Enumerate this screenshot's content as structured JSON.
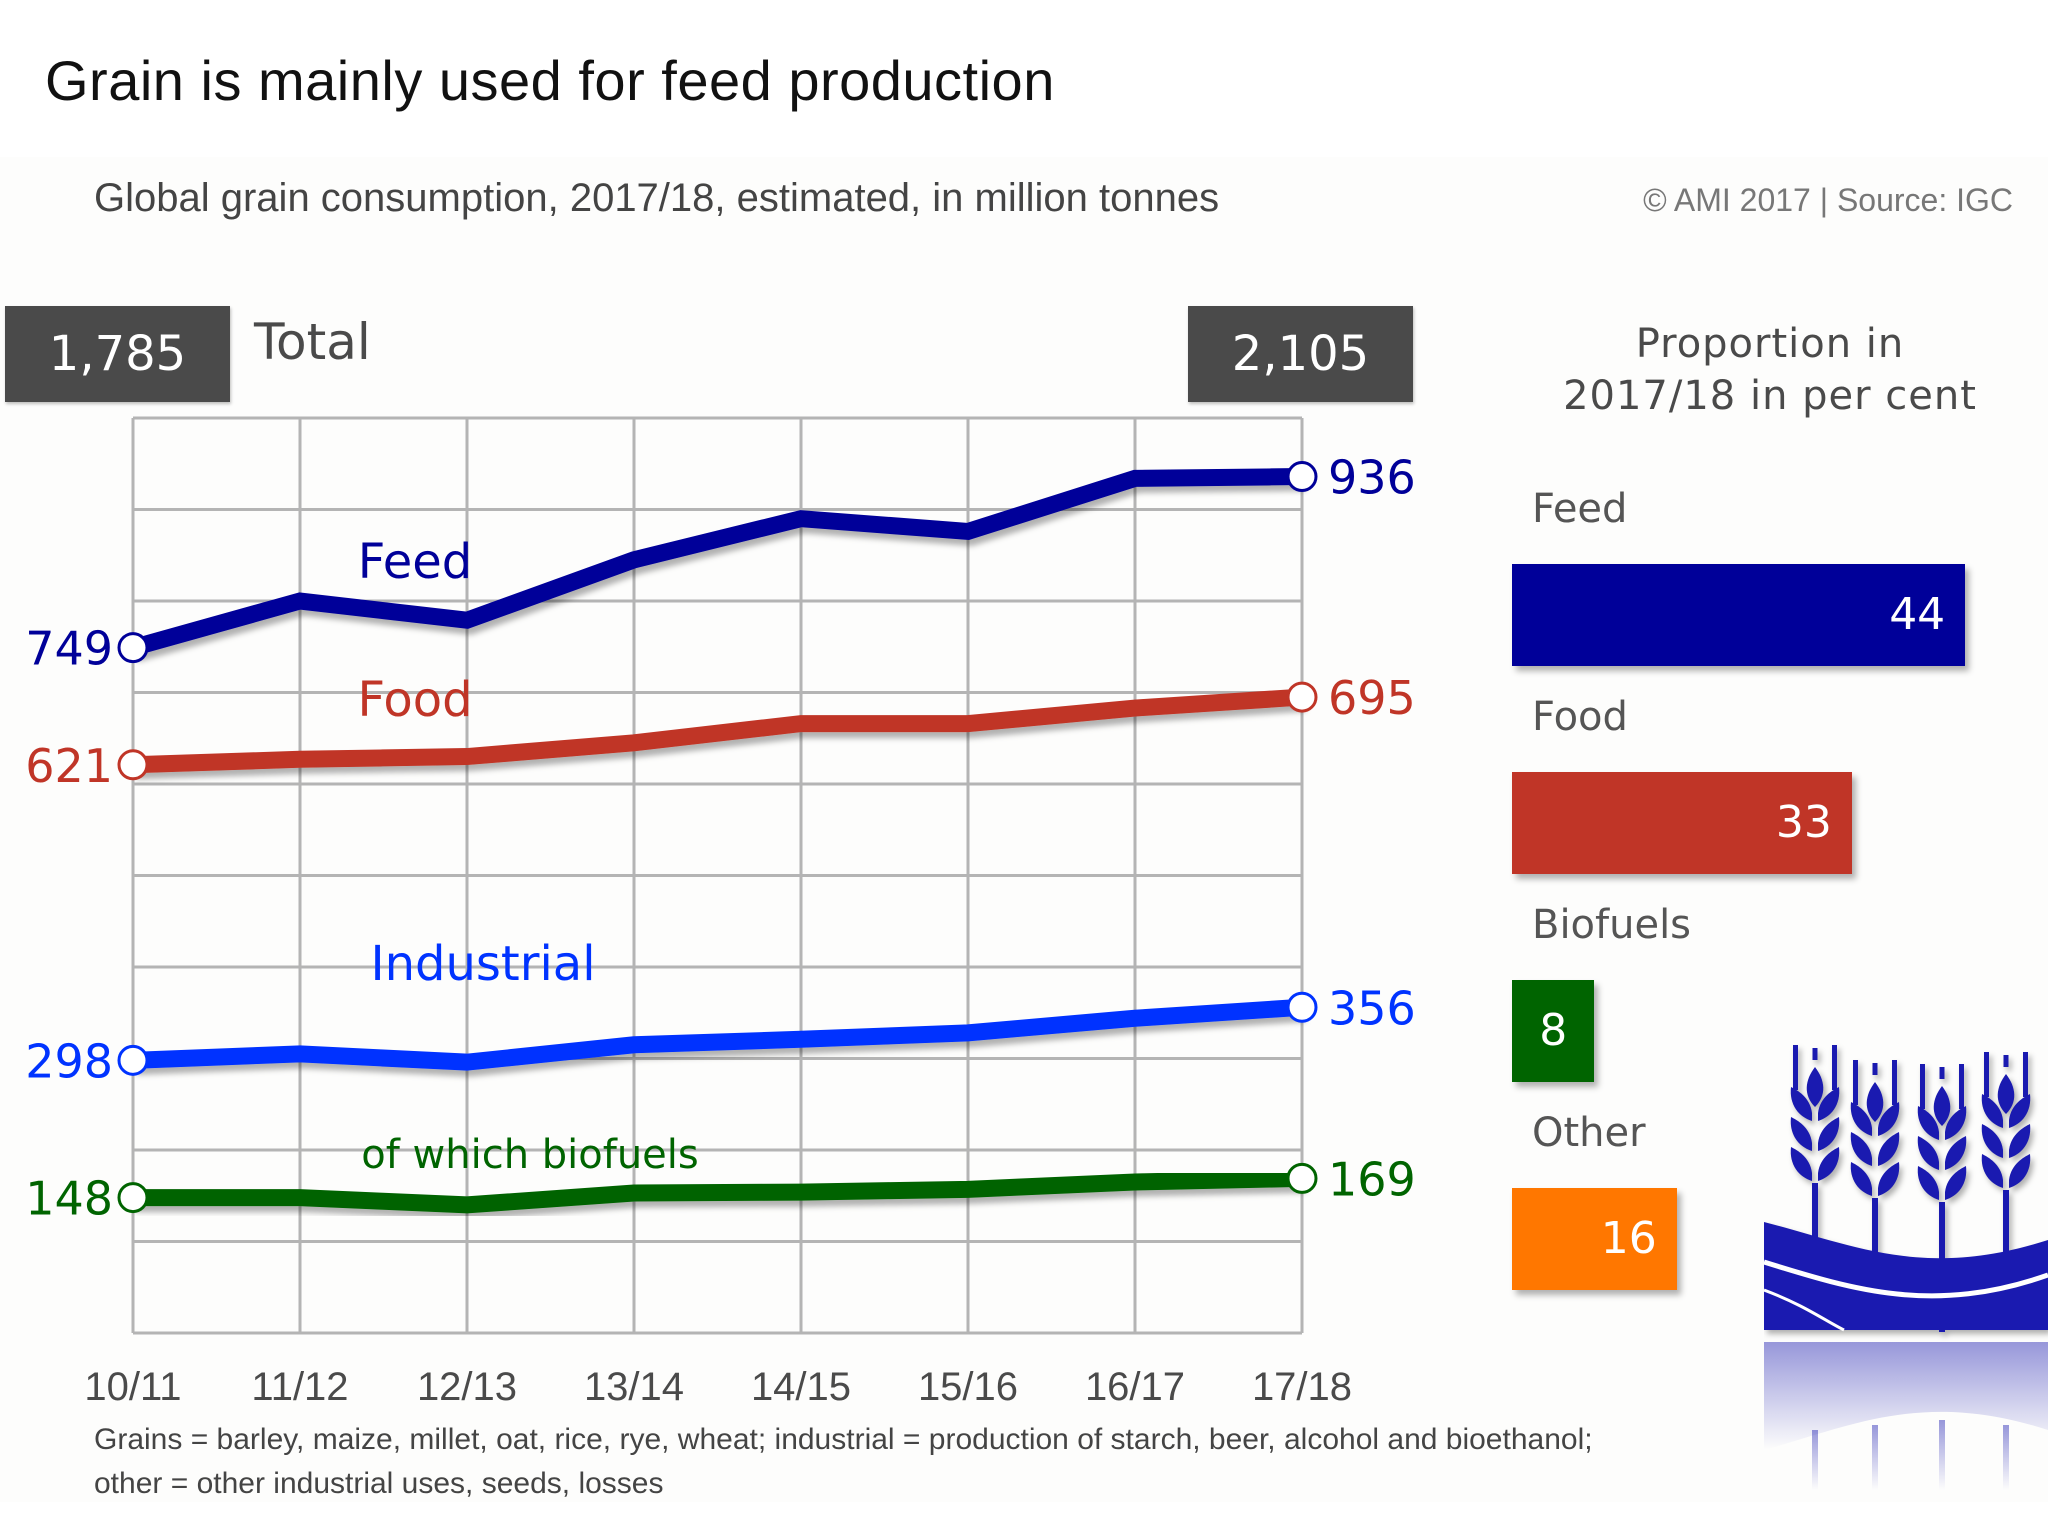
{
  "header": {
    "title": "Grain is mainly used for feed production",
    "subtitle": "Global grain consumption, 2017/18, estimated, in million tonnes",
    "source": "© AMI 2017 | Source: IGC"
  },
  "totals": {
    "start_value": "1,785",
    "end_value": "2,105",
    "label": "Total"
  },
  "footnote": {
    "line1": "Grains = barley, maize, millet, oat, rice, rye, wheat; industrial = production of starch, beer, alcohol and bioethanol;",
    "line2": "other = other industrial uses, seeds, losses"
  },
  "proportion": {
    "title_line1": "Proportion in",
    "title_line2": "2017/18 in per cent",
    "items": [
      {
        "label": "Feed",
        "value": 44,
        "color": "#000099"
      },
      {
        "label": "Food",
        "value": 33,
        "color": "#c03527"
      },
      {
        "label": "Biofuels",
        "value": 8,
        "color": "#006400"
      },
      {
        "label": "Other",
        "value": 16,
        "color": "#ff7700"
      }
    ]
  },
  "icon": {
    "name": "wheat-icon",
    "color": "#1a1ab0"
  },
  "chart_data": [
    {
      "type": "line",
      "title": "Global grain consumption, 2017/18, estimated, in million tonnes",
      "xlabel": "",
      "ylabel": "million tonnes",
      "x": [
        "10/11",
        "11/12",
        "12/13",
        "13/14",
        "14/15",
        "15/16",
        "16/17",
        "17/18"
      ],
      "ylim": [
        0,
        1000
      ],
      "ytick_step": 100,
      "grid": true,
      "legend": "inline labels",
      "totals": {
        "10/11": 1785,
        "17/18": 2105
      },
      "series": [
        {
          "name": "Feed",
          "color": "#000099",
          "label_start": "749",
          "label_end": "936",
          "values": [
            749,
            800,
            779,
            845,
            890,
            876,
            934,
            936
          ]
        },
        {
          "name": "Food",
          "color": "#c03527",
          "label_start": "621",
          "label_end": "695",
          "values": [
            621,
            627,
            630,
            645,
            666,
            666,
            683,
            695
          ]
        },
        {
          "name": "Industrial",
          "color": "#0033ff",
          "label_start": "298",
          "label_end": "356",
          "values": [
            298,
            305,
            296,
            315,
            321,
            328,
            344,
            356
          ]
        },
        {
          "name": "of which biofuels",
          "color": "#006400",
          "label_start": "148",
          "label_end": "169",
          "values": [
            148,
            148,
            140,
            153,
            154,
            157,
            165,
            169
          ]
        }
      ]
    },
    {
      "type": "bar",
      "orientation": "horizontal",
      "title": "Proportion in 2017/18 in per cent",
      "categories": [
        "Feed",
        "Food",
        "Biofuels",
        "Other"
      ],
      "values": [
        44,
        33,
        8,
        16
      ]
    }
  ]
}
